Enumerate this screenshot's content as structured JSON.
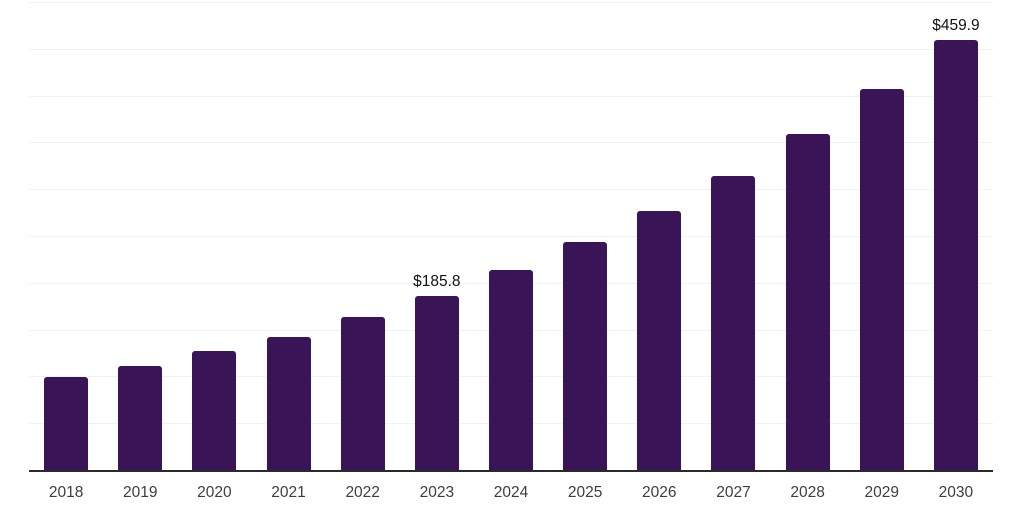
{
  "chart_data": {
    "type": "bar",
    "title": "",
    "xlabel": "",
    "ylabel": "",
    "categories": [
      "2018",
      "2019",
      "2020",
      "2021",
      "2022",
      "2023",
      "2024",
      "2025",
      "2026",
      "2027",
      "2028",
      "2029",
      "2030"
    ],
    "values": [
      99.2,
      111.5,
      127.5,
      142.5,
      163.3,
      185.8,
      213.5,
      244.0,
      276.5,
      314.5,
      359.0,
      407.5,
      459.9
    ],
    "data_labels": {
      "2023": "$185.8",
      "2030": "$459.9"
    },
    "ylim": [
      0,
      500
    ],
    "grid_step": 50,
    "grid": "horizontal",
    "legend": "none",
    "y_axis_labels_visible": false,
    "colors": {
      "bar": "#391456",
      "gridline": "#f1f1f1",
      "axis_line": "#2b2b2b",
      "x_tick_label": "#3e3e3e",
      "data_label": "#121212",
      "background": "#ffffff"
    }
  }
}
